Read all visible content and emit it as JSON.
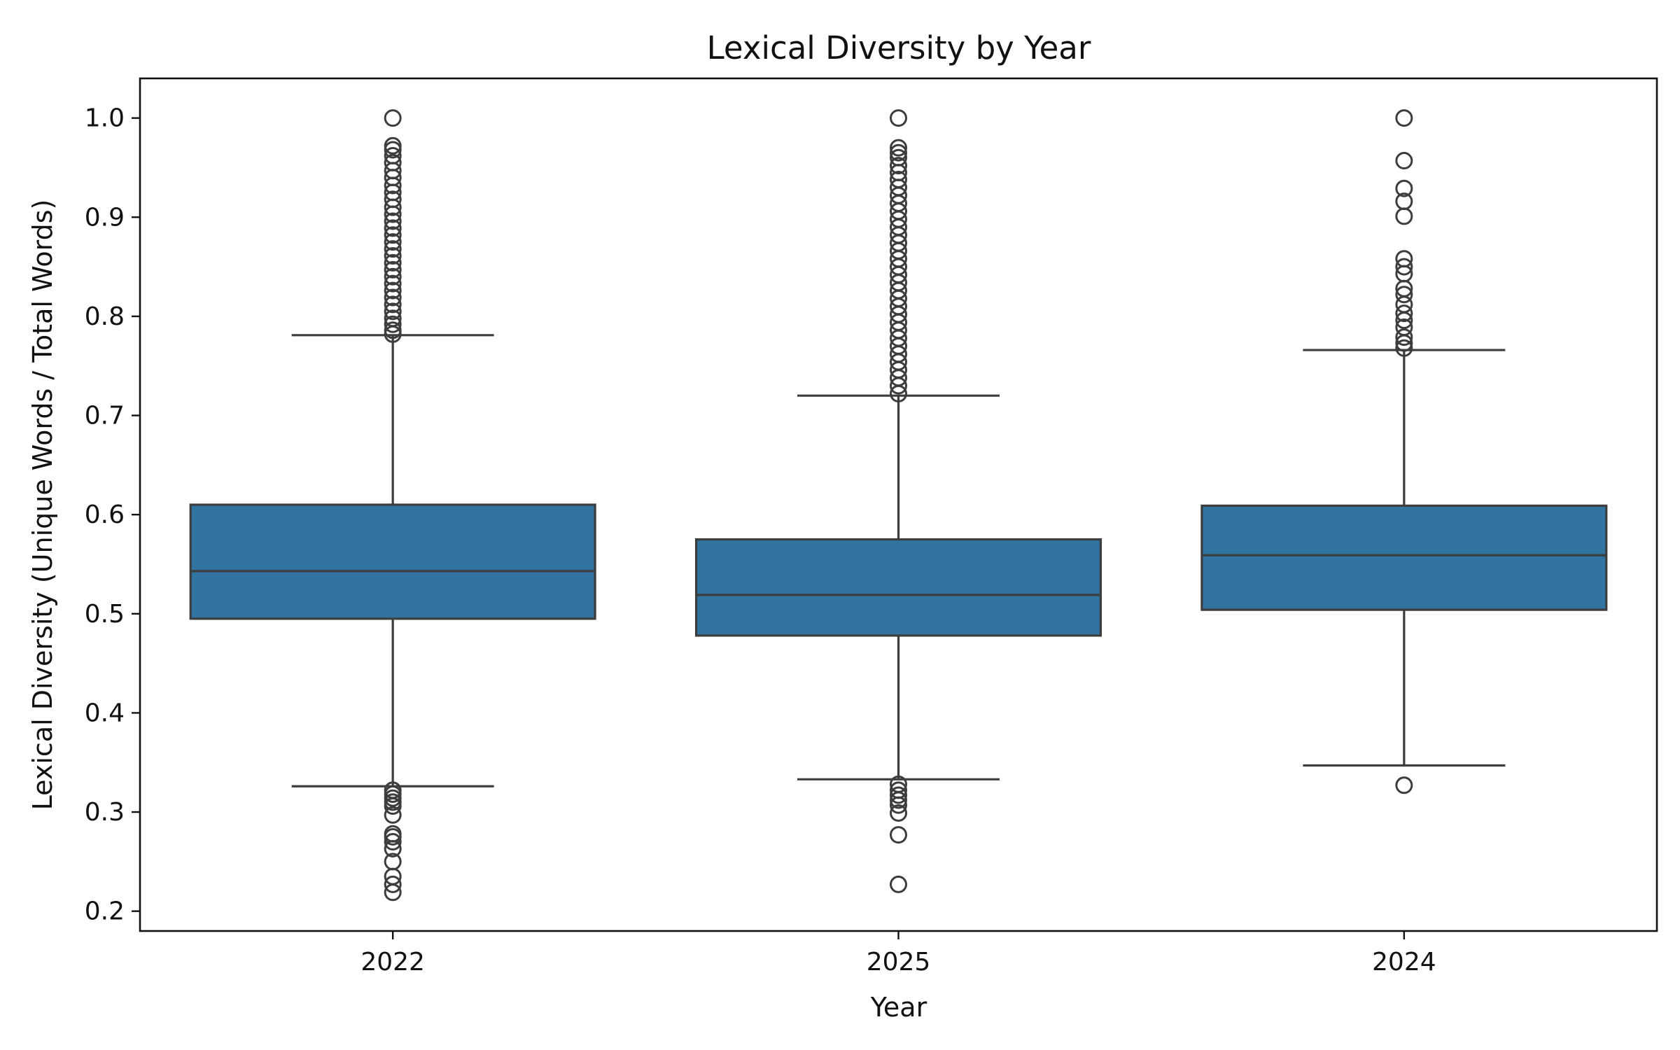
{
  "chart_data": {
    "type": "box",
    "title": "Lexical Diversity by Year",
    "xlabel": "Year",
    "ylabel": "Lexical Diversity (Unique Words / Total Words)",
    "categories": [
      "2022",
      "2025",
      "2024"
    ],
    "ylim": [
      0.18,
      1.04
    ],
    "yticks": [
      0.2,
      0.3,
      0.4,
      0.5,
      0.6,
      0.7,
      0.8,
      0.9,
      1.0
    ],
    "ytick_labels": [
      "0.2",
      "0.3",
      "0.4",
      "0.5",
      "0.6",
      "0.7",
      "0.8",
      "0.9",
      "1.0"
    ],
    "grid": false,
    "legend": "none",
    "colors": {
      "box_fill": "#3274a1",
      "box_edge": "#3d3d3d",
      "outlier_edge": "#3d3d3d"
    },
    "boxes": [
      {
        "category": "2022",
        "whisker_low": 0.326,
        "q1": 0.495,
        "median": 0.543,
        "q3": 0.61,
        "whisker_high": 0.781,
        "outliers": [
          1.0,
          0.972,
          0.968,
          0.962,
          0.955,
          0.947,
          0.94,
          0.932,
          0.925,
          0.918,
          0.91,
          0.903,
          0.896,
          0.889,
          0.882,
          0.875,
          0.868,
          0.861,
          0.854,
          0.847,
          0.84,
          0.833,
          0.826,
          0.819,
          0.812,
          0.805,
          0.798,
          0.792,
          0.786,
          0.782,
          0.322,
          0.318,
          0.314,
          0.31,
          0.306,
          0.297,
          0.278,
          0.275,
          0.27,
          0.263,
          0.25,
          0.235,
          0.227,
          0.219
        ]
      },
      {
        "category": "2025",
        "whisker_low": 0.333,
        "q1": 0.478,
        "median": 0.519,
        "q3": 0.575,
        "whisker_high": 0.72,
        "outliers": [
          1.0,
          0.97,
          0.965,
          0.96,
          0.952,
          0.945,
          0.938,
          0.93,
          0.922,
          0.914,
          0.906,
          0.898,
          0.89,
          0.882,
          0.874,
          0.866,
          0.858,
          0.85,
          0.842,
          0.834,
          0.826,
          0.818,
          0.81,
          0.802,
          0.794,
          0.786,
          0.778,
          0.77,
          0.762,
          0.754,
          0.746,
          0.738,
          0.73,
          0.722,
          0.328,
          0.322,
          0.317,
          0.312,
          0.307,
          0.299,
          0.277,
          0.227
        ]
      },
      {
        "category": "2024",
        "whisker_low": 0.347,
        "q1": 0.504,
        "median": 0.559,
        "q3": 0.609,
        "whisker_high": 0.766,
        "outliers": [
          1.0,
          0.957,
          0.929,
          0.916,
          0.901,
          0.858,
          0.85,
          0.843,
          0.828,
          0.822,
          0.812,
          0.803,
          0.796,
          0.789,
          0.779,
          0.773,
          0.768,
          0.327
        ]
      }
    ]
  }
}
